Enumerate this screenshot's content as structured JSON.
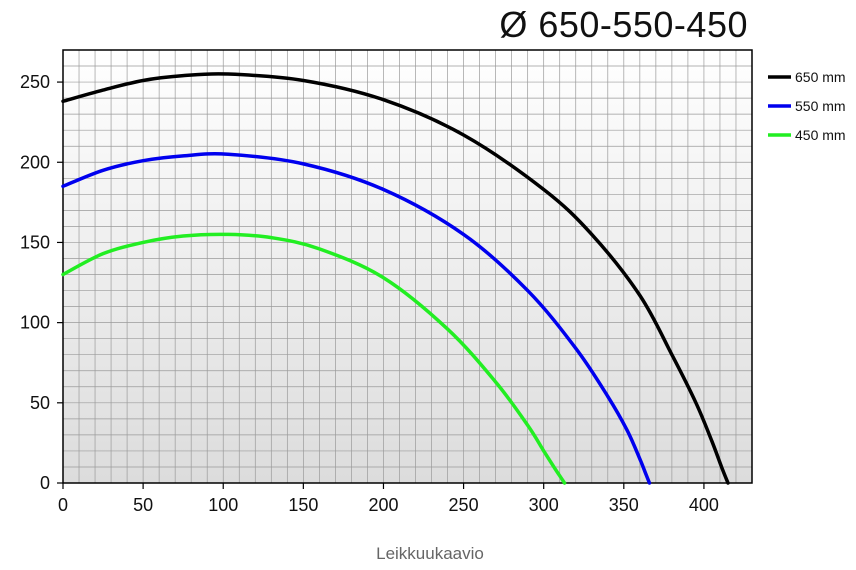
{
  "chart_data": {
    "type": "line",
    "title": "Ø 650-550-450",
    "caption": "Leikkuukaavio",
    "xlabel": "",
    "ylabel": "",
    "xlim": [
      0,
      430
    ],
    "ylim": [
      0,
      270
    ],
    "x_ticks": [
      0,
      50,
      100,
      150,
      200,
      250,
      300,
      350,
      400
    ],
    "y_ticks": [
      0,
      50,
      100,
      150,
      200,
      250
    ],
    "grid": true,
    "minor_grid_step": 10,
    "legend_position": "right",
    "series": [
      {
        "name": "650 mm",
        "color": "#000000",
        "x": [
          0,
          25,
          50,
          75,
          103,
          150,
          200,
          250,
          300,
          330,
          360,
          380,
          395,
          405,
          411,
          415
        ],
        "y": [
          238,
          245,
          251,
          254,
          255,
          251,
          239,
          217,
          183,
          155,
          117,
          80,
          50,
          26,
          10,
          0
        ]
      },
      {
        "name": "550 mm",
        "color": "#0000ee",
        "x": [
          0,
          25,
          50,
          75,
          103,
          150,
          200,
          250,
          290,
          320,
          340,
          352,
          360,
          364,
          366
        ],
        "y": [
          185,
          195,
          201,
          204,
          205,
          199,
          183,
          155,
          120,
          84,
          54,
          33,
          15,
          5,
          0
        ]
      },
      {
        "name": "450 mm",
        "color": "#22ee22",
        "x": [
          0,
          25,
          50,
          75,
          103,
          130,
          160,
          200,
          240,
          270,
          290,
          300,
          307,
          311,
          313
        ],
        "y": [
          130,
          143,
          150,
          154,
          155,
          153,
          146,
          128,
          96,
          63,
          36,
          20,
          9,
          3,
          0
        ]
      }
    ]
  }
}
